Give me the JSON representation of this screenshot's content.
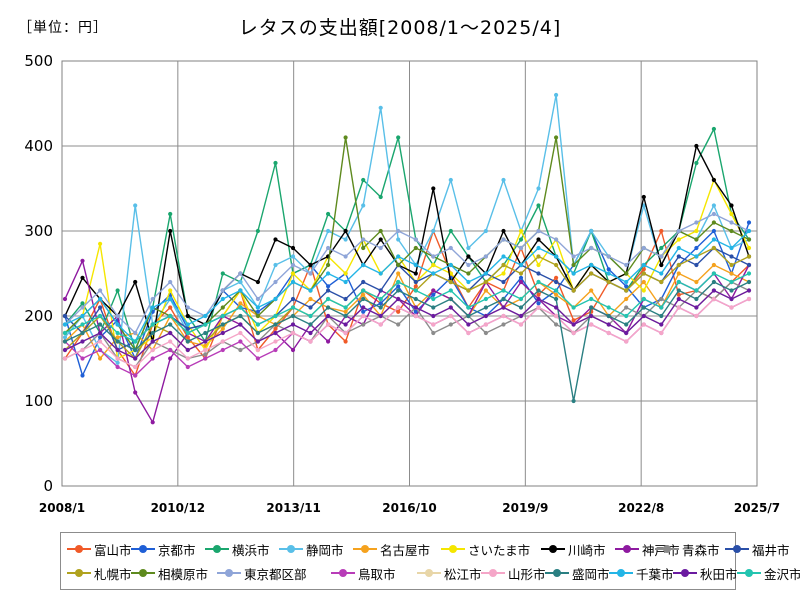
{
  "header": {
    "unit": "［単位：円］",
    "title": "レタスの支出額[2008/1～2025/4]"
  },
  "chart_data": {
    "type": "line",
    "title": "レタスの支出額[2008/1～2025/4]",
    "unit": "［単位：円］",
    "xlabel": "",
    "ylabel": "",
    "ylim": [
      0,
      500
    ],
    "yticks": [
      0,
      100,
      200,
      300,
      400,
      500
    ],
    "x_ticks": [
      "2008/1",
      "2010/12",
      "2013/11",
      "2016/10",
      "2019/9",
      "2022/8",
      "2025/7"
    ],
    "x_range": [
      "2008/1",
      "2025/7"
    ],
    "grid": true,
    "legend_position": "bottom",
    "series": [
      {
        "name": "富山市",
        "color": "#f05a28",
        "values": [
          150,
          180,
          220,
          160,
          130,
          190,
          210,
          175,
          150,
          200,
          230,
          160,
          185,
          210,
          260,
          190,
          170,
          230,
          215,
          205,
          235,
          300,
          250,
          210,
          240,
          230,
          280,
          225,
          245,
          195,
          205,
          240,
          230,
          255,
          300,
          225,
          230,
          220,
          240,
          260
        ]
      },
      {
        "name": "京都市",
        "color": "#1f5fd6",
        "values": [
          200,
          130,
          175,
          195,
          150,
          205,
          225,
          185,
          190,
          230,
          210,
          205,
          220,
          250,
          260,
          235,
          250,
          205,
          215,
          235,
          205,
          225,
          245,
          210,
          200,
          220,
          245,
          215,
          230,
          260,
          300,
          255,
          235,
          210,
          220,
          260,
          280,
          300,
          250,
          310
        ]
      },
      {
        "name": "横浜市",
        "color": "#1aa66e",
        "values": [
          190,
          215,
          180,
          230,
          160,
          210,
          320,
          200,
          170,
          250,
          240,
          300,
          380,
          250,
          260,
          320,
          300,
          360,
          340,
          410,
          290,
          260,
          300,
          270,
          240,
          260,
          290,
          330,
          270,
          250,
          300,
          240,
          230,
          260,
          280,
          300,
          380,
          420,
          320,
          290
        ]
      },
      {
        "name": "静岡市",
        "color": "#59bfe8",
        "values": [
          175,
          200,
          160,
          145,
          330,
          190,
          220,
          180,
          190,
          230,
          240,
          210,
          260,
          270,
          250,
          300,
          290,
          330,
          445,
          290,
          260,
          300,
          360,
          280,
          300,
          360,
          300,
          350,
          460,
          260,
          300,
          270,
          250,
          330,
          260,
          300,
          290,
          330,
          280,
          290
        ]
      },
      {
        "name": "名古屋市",
        "color": "#f5a21e",
        "values": [
          170,
          190,
          150,
          175,
          180,
          160,
          200,
          170,
          165,
          185,
          215,
          200,
          190,
          200,
          220,
          210,
          205,
          225,
          200,
          250,
          210,
          230,
          220,
          200,
          230,
          210,
          220,
          240,
          225,
          210,
          230,
          200,
          220,
          240,
          210,
          250,
          240,
          260,
          250,
          240
        ]
      },
      {
        "name": "さいたま市",
        "color": "#f5e600",
        "values": [
          180,
          200,
          285,
          150,
          160,
          175,
          230,
          190,
          160,
          200,
          230,
          180,
          200,
          250,
          230,
          270,
          250,
          290,
          250,
          270,
          240,
          260,
          250,
          230,
          240,
          250,
          300,
          260,
          290,
          230,
          260,
          240,
          250,
          230,
          270,
          290,
          300,
          360,
          320,
          280
        ]
      },
      {
        "name": "川崎市",
        "color": "#000000",
        "values": [
          200,
          245,
          220,
          200,
          240,
          170,
          300,
          200,
          190,
          230,
          250,
          240,
          290,
          280,
          260,
          270,
          300,
          260,
          290,
          260,
          250,
          350,
          240,
          270,
          250,
          300,
          260,
          290,
          270,
          230,
          260,
          240,
          250,
          340,
          260,
          300,
          400,
          360,
          330,
          270
        ]
      },
      {
        "name": "神戸市",
        "color": "#8e1aa0",
        "values": [
          220,
          265,
          180,
          200,
          110,
          75,
          150,
          180,
          170,
          200,
          190,
          170,
          180,
          160,
          190,
          170,
          200,
          190,
          230,
          220,
          200,
          230,
          220,
          200,
          240,
          210,
          240,
          220,
          200,
          190,
          210,
          200,
          180,
          220,
          210,
          240,
          230,
          250,
          220,
          260
        ]
      },
      {
        "name": "青森市",
        "color": "#8c8c8c",
        "values": [
          150,
          160,
          180,
          150,
          140,
          170,
          160,
          150,
          155,
          170,
          160,
          170,
          190,
          180,
          170,
          200,
          180,
          190,
          200,
          190,
          210,
          180,
          190,
          200,
          180,
          190,
          200,
          210,
          190,
          180,
          200,
          190,
          210,
          200,
          220,
          210,
          230,
          220,
          240,
          230
        ]
      },
      {
        "name": "福井市",
        "color": "#2a4fa8",
        "values": [
          200,
          180,
          210,
          160,
          170,
          190,
          200,
          185,
          190,
          200,
          210,
          190,
          200,
          220,
          210,
          230,
          220,
          240,
          230,
          260,
          240,
          250,
          240,
          230,
          250,
          240,
          260,
          250,
          240,
          230,
          250,
          240,
          230,
          250,
          240,
          270,
          260,
          280,
          270,
          260
        ]
      },
      {
        "name": "札幌市",
        "color": "#b0a21e",
        "values": [
          160,
          180,
          200,
          170,
          150,
          190,
          180,
          160,
          170,
          190,
          200,
          180,
          190,
          210,
          200,
          220,
          210,
          230,
          220,
          240,
          230,
          250,
          240,
          230,
          240,
          260,
          250,
          270,
          260,
          230,
          250,
          240,
          230,
          250,
          240,
          260,
          270,
          280,
          260,
          270
        ]
      },
      {
        "name": "相模原市",
        "color": "#5e8a1e",
        "values": [
          180,
          200,
          220,
          190,
          160,
          210,
          200,
          180,
          190,
          210,
          230,
          200,
          220,
          240,
          230,
          260,
          410,
          280,
          300,
          260,
          280,
          270,
          260,
          250,
          270,
          290,
          280,
          300,
          410,
          260,
          280,
          270,
          250,
          280,
          270,
          300,
          290,
          310,
          300,
          290
        ]
      },
      {
        "name": "東京都区部",
        "color": "#8fa5d8",
        "values": [
          190,
          210,
          230,
          200,
          180,
          220,
          240,
          210,
          200,
          230,
          250,
          220,
          240,
          260,
          250,
          280,
          270,
          290,
          280,
          300,
          290,
          270,
          280,
          260,
          270,
          290,
          280,
          300,
          290,
          270,
          280,
          270,
          260,
          280,
          270,
          300,
          310,
          320,
          310,
          300
        ]
      },
      {
        "name": "鳥取市",
        "color": "#b83cb8",
        "values": [
          170,
          150,
          160,
          140,
          130,
          150,
          160,
          140,
          150,
          160,
          170,
          150,
          160,
          180,
          170,
          190,
          180,
          200,
          190,
          210,
          200,
          190,
          200,
          180,
          190,
          200,
          190,
          210,
          200,
          180,
          190,
          180,
          170,
          190,
          180,
          210,
          200,
          220,
          210,
          220
        ]
      },
      {
        "name": "松江市",
        "color": "#e8d6a8",
        "values": [
          160,
          170,
          180,
          160,
          150,
          170,
          180,
          160,
          170,
          180,
          190,
          170,
          180,
          190,
          180,
          200,
          190,
          210,
          200,
          220,
          210,
          200,
          210,
          190,
          200,
          210,
          200,
          220,
          210,
          190,
          200,
          190,
          180,
          200,
          190,
          220,
          210,
          230,
          220,
          230
        ]
      },
      {
        "name": "山形市",
        "color": "#f5a6c8",
        "values": [
          150,
          160,
          170,
          150,
          140,
          160,
          170,
          150,
          160,
          170,
          180,
          160,
          170,
          180,
          170,
          190,
          180,
          200,
          190,
          210,
          200,
          190,
          200,
          180,
          190,
          200,
          190,
          210,
          200,
          180,
          190,
          180,
          170,
          190,
          180,
          210,
          200,
          220,
          210,
          220
        ]
      },
      {
        "name": "盛岡市",
        "color": "#2a7f82",
        "values": [
          170,
          180,
          190,
          170,
          160,
          180,
          190,
          170,
          180,
          190,
          200,
          180,
          190,
          200,
          190,
          210,
          200,
          220,
          210,
          230,
          220,
          210,
          220,
          200,
          210,
          220,
          210,
          230,
          220,
          100,
          210,
          200,
          190,
          210,
          200,
          230,
          220,
          240,
          230,
          240
        ]
      },
      {
        "name": "千葉市",
        "color": "#23b5e6",
        "values": [
          190,
          200,
          220,
          190,
          170,
          210,
          220,
          190,
          200,
          220,
          230,
          210,
          220,
          240,
          230,
          250,
          240,
          260,
          250,
          270,
          260,
          250,
          260,
          240,
          250,
          270,
          260,
          280,
          270,
          250,
          260,
          250,
          240,
          260,
          250,
          280,
          270,
          290,
          280,
          300
        ]
      },
      {
        "name": "秋田市",
        "color": "#6a1aa0",
        "values": [
          160,
          170,
          180,
          160,
          150,
          170,
          180,
          160,
          170,
          180,
          190,
          170,
          180,
          190,
          180,
          200,
          190,
          210,
          200,
          220,
          210,
          200,
          210,
          190,
          200,
          210,
          200,
          220,
          210,
          190,
          200,
          190,
          180,
          200,
          190,
          220,
          210,
          230,
          220,
          230
        ]
      },
      {
        "name": "金沢市",
        "color": "#23c4b0",
        "values": [
          180,
          190,
          200,
          180,
          170,
          190,
          200,
          180,
          190,
          200,
          210,
          190,
          200,
          210,
          200,
          220,
          210,
          230,
          220,
          240,
          230,
          220,
          230,
          210,
          220,
          230,
          220,
          240,
          230,
          210,
          220,
          210,
          200,
          220,
          210,
          240,
          230,
          250,
          240,
          250
        ]
      }
    ]
  }
}
